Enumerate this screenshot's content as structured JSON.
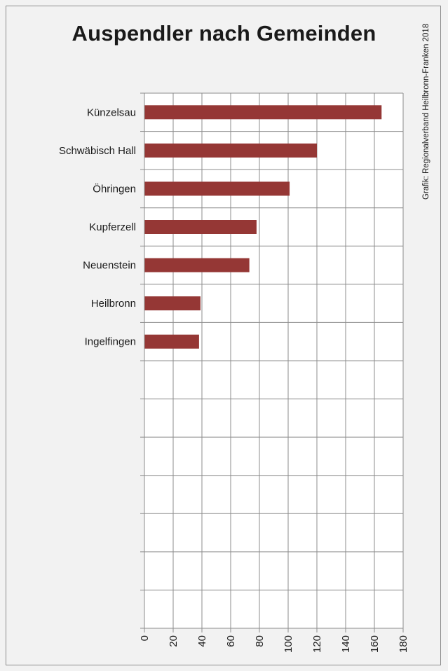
{
  "chart_data": {
    "type": "bar",
    "orientation": "horizontal",
    "title": "Auspendler nach Gemeinden",
    "credit": "Grafik: Regionalverband Heilbronn-Franken 2018",
    "categories": [
      "Künzelsau",
      "Schwäbisch Hall",
      "Öhringen",
      "Kupferzell",
      "Neuenstein",
      "Heilbronn",
      "Ingelfingen"
    ],
    "values": [
      165,
      120,
      101,
      78,
      73,
      39,
      38
    ],
    "xlim": [
      0,
      180
    ],
    "x_ticks": [
      0,
      20,
      40,
      60,
      80,
      100,
      120,
      140,
      160,
      180
    ],
    "row_slots": 14,
    "grid": true,
    "bar_color": "#953735"
  }
}
